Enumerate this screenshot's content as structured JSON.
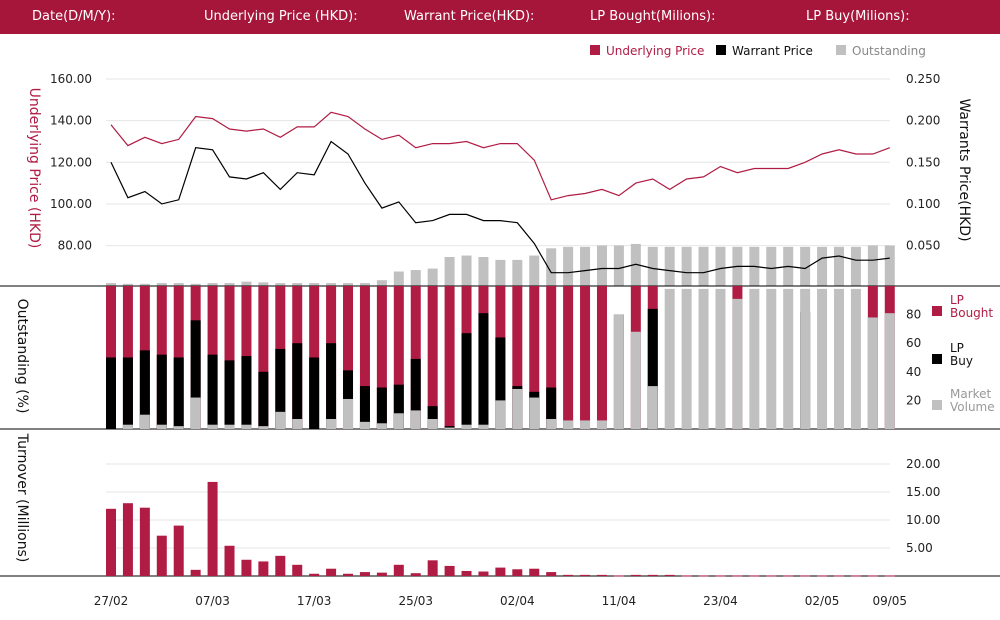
{
  "header": {
    "labels": [
      "Date(D/M/Y):",
      "Underlying Price (HKD):",
      "Warrant  Price(HKD):",
      "LP Bought(Milions):",
      "LP Buy(Milions):"
    ]
  },
  "colors": {
    "header_bg": "#a6163a",
    "underlying": "#b01c44",
    "warrant": "#000000",
    "outstanding": "#c0c0c0",
    "lp_bought": "#b01c44",
    "lp_buy": "#000000",
    "market_volume": "#c0c0c0",
    "turnover": "#b01c44"
  },
  "chart_data": [
    {
      "type": "line",
      "title": "",
      "legend": {
        "placement": "top-right",
        "entries": [
          "Underlying Price",
          "Warrant  Price",
          "Outstanding"
        ]
      },
      "left_axis_label": "Underlying Price (HKD)",
      "right_axis_label": "Warrants  Price(HKD)",
      "left_ticks": [
        "160.00",
        "140.00",
        "120.00",
        "100.00",
        "80.00"
      ],
      "right_ticks": [
        "0.250",
        "0.200",
        "0.150",
        "0.100",
        "0.050"
      ],
      "left_ylim": [
        60,
        160
      ],
      "right_ylim": [
        0,
        0.25
      ],
      "grid": true,
      "series": [
        {
          "name": "Underlying Price",
          "axis": "left",
          "values": [
            138,
            128,
            132,
            129,
            131,
            142,
            141,
            136,
            135,
            136,
            132,
            137,
            137,
            144,
            142,
            136,
            131,
            133,
            127,
            129,
            129,
            130,
            127,
            129,
            129,
            121,
            102,
            104,
            105,
            107,
            104,
            110,
            112,
            107,
            112,
            113,
            118,
            115,
            117,
            117,
            117,
            120,
            124,
            126,
            124,
            124,
            127
          ]
        },
        {
          "name": "Warrant  Price",
          "axis": "left",
          "values": [
            120,
            103,
            106,
            100,
            102,
            127,
            126,
            113,
            112,
            115,
            107,
            115,
            114,
            130,
            124,
            110,
            98,
            101,
            91,
            92,
            95,
            95,
            92,
            92,
            91,
            81,
            67,
            67,
            68,
            69,
            69,
            71,
            69,
            68,
            67,
            67,
            69,
            70,
            70,
            69,
            70,
            69,
            74,
            75,
            73,
            73,
            74
          ]
        },
        {
          "name": "Outstanding",
          "axis": "outstanding",
          "values": [
            2,
            1.5,
            1.5,
            2,
            2,
            1.5,
            2,
            2,
            3,
            2.5,
            2,
            2,
            2,
            2,
            2,
            2,
            4,
            10,
            11,
            12,
            20,
            21,
            20,
            18,
            18,
            21,
            26,
            27,
            27,
            28,
            28,
            29,
            27,
            27,
            27,
            27,
            27,
            27,
            27,
            27,
            27,
            27,
            27,
            27,
            27,
            28,
            28
          ]
        }
      ]
    },
    {
      "type": "bar",
      "title": "",
      "left_axis_label": "Outstanding (%)",
      "right_ticks": [
        "80",
        "60",
        "40",
        "20"
      ],
      "ylim": [
        0,
        100
      ],
      "legend": {
        "placement": "right",
        "entries": [
          "LP Bought",
          "LP Buy",
          "Market Volume"
        ]
      },
      "series": [
        {
          "name": "LP Bought",
          "values": [
            100,
            100,
            100,
            100,
            100,
            100,
            100,
            100,
            100,
            100,
            100,
            100,
            100,
            100,
            100,
            100,
            100,
            100,
            100,
            100,
            100,
            100,
            100,
            100,
            100,
            100,
            100,
            100,
            100,
            100,
            0,
            100,
            100,
            0,
            0,
            0,
            0,
            9,
            0,
            0,
            0,
            0,
            0,
            0,
            0,
            100,
            100
          ]
        },
        {
          "name": "LP Buy",
          "values": [
            50,
            50,
            55,
            52,
            50,
            76,
            52,
            48,
            51,
            40,
            56,
            60,
            50,
            60,
            41,
            30,
            29,
            31,
            49,
            16,
            2,
            67,
            81,
            64,
            30,
            26,
            29,
            0,
            0,
            0,
            80,
            0,
            84,
            0,
            0,
            0,
            0,
            0,
            0,
            0,
            0,
            82,
            0,
            0,
            0,
            0,
            0
          ]
        },
        {
          "name": "Market Volume",
          "values": [
            0,
            3,
            10,
            3,
            2,
            22,
            3,
            3,
            3,
            2,
            12,
            7,
            0,
            7,
            21,
            5,
            4,
            11,
            13,
            7,
            1,
            3,
            3,
            20,
            28,
            22,
            7,
            6,
            6,
            6,
            80,
            68,
            30,
            98,
            98,
            98,
            98,
            91,
            98,
            98,
            98,
            98,
            98,
            98,
            98,
            78,
            81
          ]
        }
      ]
    },
    {
      "type": "bar",
      "title": "",
      "left_axis_label": "Turnover (Millions)",
      "right_ticks": [
        "20.00",
        "15.00",
        "10.00",
        "5.00"
      ],
      "ylim": [
        0,
        20
      ],
      "x_tick_labels": [
        "27/02",
        "07/03",
        "17/03",
        "25/03",
        "02/04",
        "11/04",
        "23/04",
        "02/05",
        "09/05"
      ],
      "x_tick_index": [
        0,
        6,
        12,
        18,
        24,
        30,
        36,
        42,
        46
      ],
      "series": [
        {
          "name": "Turnover",
          "values": [
            12,
            13,
            12.2,
            7.2,
            9,
            1.1,
            16.8,
            5.4,
            2.9,
            2.6,
            3.6,
            2,
            0.4,
            1.3,
            0.4,
            0.7,
            0.6,
            2,
            0.5,
            2.8,
            1.8,
            0.9,
            0.8,
            1.5,
            1.2,
            1.3,
            0.7,
            0.2,
            0.2,
            0.2,
            0.1,
            0.2,
            0.2,
            0.2,
            0.1,
            0.1,
            0.1,
            0.1,
            0.1,
            0.1,
            0.1,
            0.1,
            0.1,
            0.1,
            0.1,
            0.1,
            0.1
          ]
        }
      ]
    }
  ]
}
